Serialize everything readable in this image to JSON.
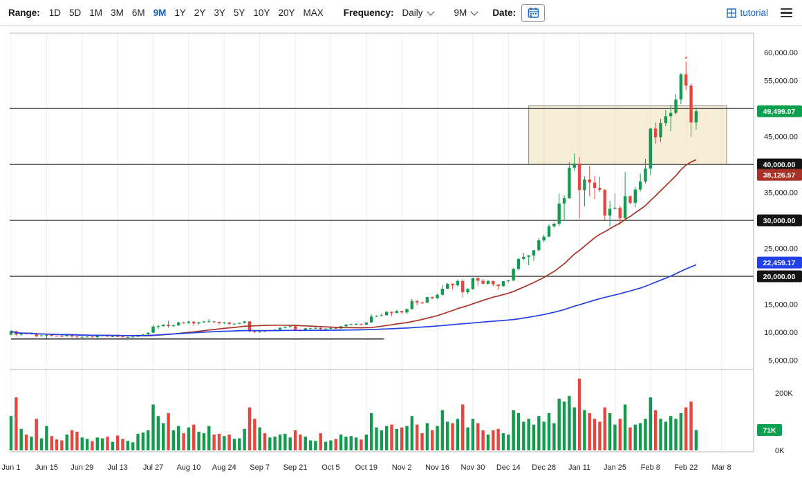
{
  "toolbar": {
    "range_label": "Range:",
    "ranges": [
      "1D",
      "5D",
      "1M",
      "3M",
      "6M",
      "9M",
      "1Y",
      "2Y",
      "3Y",
      "5Y",
      "10Y",
      "20Y",
      "MAX"
    ],
    "active_range": "9M",
    "frequency_label": "Frequency:",
    "frequency_value": "Daily",
    "period_value": "9M",
    "date_label": "Date:",
    "tutorial_label": "tutorial",
    "accent_color": "#1565c0"
  },
  "chart_data": {
    "type": "candlestick",
    "frequency": "Daily",
    "range": "9M",
    "day_step": 2,
    "x_ticks": [
      "Jun 1",
      "Jun 15",
      "Jun 29",
      "Jul 13",
      "Jul 27",
      "Aug 10",
      "Aug 24",
      "Sep 7",
      "Sep 21",
      "Oct 5",
      "Oct 19",
      "Nov 2",
      "Nov 16",
      "Nov 30",
      "Dec 14",
      "Dec 28",
      "Jan 11",
      "Jan 25",
      "Feb 8",
      "Feb 22",
      "Mar 8"
    ],
    "tick_interval_days": 14,
    "price_axis": {
      "min": 5000,
      "max": 60000,
      "step": 5000,
      "plain_labels": [
        {
          "label": "60,000.00",
          "value": 60000
        },
        {
          "label": "55,000.00",
          "value": 55000
        },
        {
          "label": "45,000.00",
          "value": 45000
        },
        {
          "label": "35,000.00",
          "value": 35000
        },
        {
          "label": "25,000.00",
          "value": 25000
        },
        {
          "label": "15,000.00",
          "value": 15000
        },
        {
          "label": "10,000.00",
          "value": 10000
        },
        {
          "label": "5,000.00",
          "value": 5000
        }
      ]
    },
    "volume_axis": {
      "max_k": 200,
      "labels": [
        {
          "label": "200K",
          "value": 200
        },
        {
          "label": "0K",
          "value": 0
        }
      ]
    },
    "badges": [
      {
        "label": "49,499.07",
        "price": 49499.07,
        "bg": "#0aa04e",
        "meaning": "last-price"
      },
      {
        "label": "40,000.00",
        "price": 40000,
        "bg": "#141414",
        "meaning": "level-line"
      },
      {
        "label": "38,126.57",
        "price": 38126.57,
        "bg": "#a93226",
        "meaning": "red-ma-value"
      },
      {
        "label": "30,000.00",
        "price": 30000,
        "bg": "#141414",
        "meaning": "level-line"
      },
      {
        "label": "22,459.17",
        "price": 22459.17,
        "bg": "#2240e8",
        "meaning": "blue-ma-value"
      },
      {
        "label": "20,000.00",
        "price": 20000,
        "bg": "#141414",
        "meaning": "level-line"
      }
    ],
    "volume_badge": {
      "label": "71K",
      "value": 71,
      "bg": "#0aa04e"
    },
    "h_lines": [
      {
        "price": 50000
      },
      {
        "price": 40000
      },
      {
        "price": 30000
      },
      {
        "price": 20000
      }
    ],
    "segment": {
      "price": 8800,
      "day_start": 0,
      "day_end": 147
    },
    "rect": {
      "day_start": 204,
      "day_end": 282,
      "price_top": 50500,
      "price_bottom": 40000
    },
    "marker": {
      "day": 266,
      "price": 58900,
      "color": "#e53935"
    },
    "overlays": [
      {
        "name": "ma-red-line",
        "color": "#a93226",
        "window": 25
      },
      {
        "name": "ma-blue-line",
        "color": "#2240e8",
        "window": 100
      }
    ],
    "colors": {
      "up": "#149a4e",
      "down": "#e5463d",
      "rect_fill": "#efd9a7"
    },
    "candles": [
      [
        9550,
        10400,
        9450,
        10200,
        120
      ],
      [
        10200,
        10290,
        9300,
        9570,
        185
      ],
      [
        9570,
        9900,
        9400,
        9800,
        75
      ],
      [
        9800,
        9880,
        9650,
        9750,
        55
      ],
      [
        9750,
        9870,
        9600,
        9770,
        48
      ],
      [
        9770,
        9950,
        9100,
        9300,
        110
      ],
      [
        9300,
        9480,
        9250,
        9430,
        42
      ],
      [
        9430,
        9590,
        8900,
        9520,
        85
      ],
      [
        9520,
        9560,
        9230,
        9380,
        50
      ],
      [
        9380,
        9440,
        9280,
        9310,
        38
      ],
      [
        9310,
        9410,
        9200,
        9280,
        35
      ],
      [
        9280,
        9700,
        9240,
        9620,
        55
      ],
      [
        9620,
        9650,
        9010,
        9240,
        70
      ],
      [
        9240,
        9300,
        8830,
        9110,
        65
      ],
      [
        9110,
        9230,
        9000,
        9190,
        45
      ],
      [
        9190,
        9300,
        9080,
        9230,
        40
      ],
      [
        9230,
        9280,
        9060,
        9120,
        32
      ],
      [
        9120,
        9370,
        8940,
        9340,
        45
      ],
      [
        9340,
        9470,
        9230,
        9440,
        42
      ],
      [
        9440,
        9570,
        9160,
        9240,
        48
      ],
      [
        9240,
        9310,
        9130,
        9290,
        30
      ],
      [
        9290,
        9640,
        9220,
        9250,
        52
      ],
      [
        9250,
        9280,
        9040,
        9130,
        40
      ],
      [
        9130,
        9220,
        9010,
        9160,
        33
      ],
      [
        9160,
        9220,
        9080,
        9210,
        28
      ],
      [
        9210,
        9540,
        9150,
        9520,
        58
      ],
      [
        9520,
        9670,
        9270,
        9600,
        62
      ],
      [
        9600,
        9960,
        9530,
        9920,
        70
      ],
      [
        9920,
        11420,
        9820,
        11020,
        160
      ],
      [
        11020,
        11340,
        10560,
        11100,
        120
      ],
      [
        11100,
        11450,
        10940,
        11350,
        95
      ],
      [
        11350,
        12080,
        10800,
        11090,
        130
      ],
      [
        11090,
        11400,
        10920,
        11230,
        70
      ],
      [
        11230,
        11900,
        11150,
        11760,
        85
      ],
      [
        11760,
        11870,
        11520,
        11680,
        60
      ],
      [
        11680,
        12060,
        11480,
        11890,
        80
      ],
      [
        11890,
        11950,
        11130,
        11570,
        90
      ],
      [
        11570,
        11850,
        11310,
        11780,
        65
      ],
      [
        11780,
        12090,
        11680,
        11900,
        60
      ],
      [
        11900,
        12380,
        11810,
        11940,
        85
      ],
      [
        11940,
        12020,
        11600,
        11860,
        55
      ],
      [
        11860,
        11880,
        11370,
        11650,
        58
      ],
      [
        11650,
        11820,
        11440,
        11770,
        50
      ],
      [
        11770,
        11790,
        11260,
        11470,
        55
      ],
      [
        11470,
        11560,
        11290,
        11530,
        40
      ],
      [
        11530,
        11720,
        11430,
        11690,
        42
      ],
      [
        11690,
        12060,
        11540,
        11930,
        75
      ],
      [
        11930,
        11960,
        10000,
        10170,
        150
      ],
      [
        10170,
        10290,
        9840,
        10050,
        110
      ],
      [
        10050,
        10390,
        9920,
        10250,
        80
      ],
      [
        10250,
        10340,
        9990,
        10230,
        60
      ],
      [
        10230,
        10420,
        10130,
        10390,
        45
      ],
      [
        10390,
        10580,
        10220,
        10440,
        48
      ],
      [
        10440,
        10930,
        10340,
        10790,
        55
      ],
      [
        10790,
        11090,
        10670,
        10940,
        58
      ],
      [
        10940,
        11170,
        10850,
        11080,
        45
      ],
      [
        11080,
        11090,
        10340,
        10440,
        70
      ],
      [
        10440,
        10540,
        10140,
        10230,
        55
      ],
      [
        10230,
        10750,
        10190,
        10690,
        48
      ],
      [
        10690,
        10810,
        10570,
        10720,
        35
      ],
      [
        10720,
        10860,
        10620,
        10780,
        33
      ],
      [
        10780,
        10920,
        10390,
        10570,
        60
      ],
      [
        10570,
        10690,
        10510,
        10660,
        30
      ],
      [
        10660,
        10800,
        10550,
        10770,
        35
      ],
      [
        10770,
        10950,
        10560,
        10670,
        40
      ],
      [
        10670,
        11110,
        10630,
        11060,
        55
      ],
      [
        11060,
        11440,
        11010,
        11370,
        48
      ],
      [
        11370,
        11560,
        11280,
        11420,
        50
      ],
      [
        11420,
        11620,
        11220,
        11500,
        45
      ],
      [
        11500,
        11560,
        11260,
        11360,
        38
      ],
      [
        11360,
        11830,
        11330,
        11750,
        55
      ],
      [
        11750,
        13250,
        11700,
        12800,
        130
      ],
      [
        12800,
        13030,
        12720,
        12930,
        80
      ],
      [
        12930,
        13360,
        12880,
        13030,
        70
      ],
      [
        13030,
        13790,
        13010,
        13650,
        85
      ],
      [
        13650,
        13680,
        12920,
        13440,
        90
      ],
      [
        13440,
        14060,
        13410,
        13800,
        75
      ],
      [
        13800,
        13830,
        13230,
        13550,
        80
      ],
      [
        13550,
        14250,
        13290,
        14140,
        85
      ],
      [
        14140,
        15950,
        14080,
        15580,
        120
      ],
      [
        15580,
        15750,
        14800,
        15330,
        90
      ],
      [
        15330,
        15460,
        15070,
        15300,
        60
      ],
      [
        15300,
        16320,
        15200,
        16280,
        95
      ],
      [
        16280,
        16450,
        15860,
        16070,
        70
      ],
      [
        16070,
        16870,
        15960,
        16710,
        85
      ],
      [
        16710,
        18480,
        16550,
        17780,
        140
      ],
      [
        17780,
        18810,
        17720,
        18650,
        100
      ],
      [
        18650,
        18750,
        17620,
        18410,
        95
      ],
      [
        18410,
        19420,
        18120,
        19160,
        110
      ],
      [
        19160,
        19480,
        16250,
        17150,
        160
      ],
      [
        17150,
        17880,
        16870,
        17730,
        80
      ],
      [
        17730,
        19750,
        17570,
        19700,
        110
      ],
      [
        19700,
        19890,
        18330,
        19200,
        95
      ],
      [
        19200,
        19520,
        18650,
        18650,
        70
      ],
      [
        18650,
        19390,
        18500,
        19150,
        55
      ],
      [
        19150,
        19280,
        18230,
        18550,
        70
      ],
      [
        18550,
        18560,
        17630,
        18250,
        75
      ],
      [
        18250,
        19170,
        18040,
        19130,
        60
      ],
      [
        19130,
        19350,
        18880,
        19270,
        55
      ],
      [
        19270,
        21480,
        19150,
        21310,
        140
      ],
      [
        21310,
        23270,
        21060,
        23100,
        130
      ],
      [
        23100,
        24200,
        22850,
        23480,
        100
      ],
      [
        23480,
        23800,
        21940,
        23730,
        110
      ],
      [
        23730,
        24700,
        22700,
        24660,
        90
      ],
      [
        24660,
        26870,
        24500,
        26440,
        120
      ],
      [
        26440,
        27400,
        26100,
        27080,
        100
      ],
      [
        27080,
        29300,
        27000,
        28950,
        130
      ],
      [
        28950,
        29660,
        28620,
        29400,
        95
      ],
      [
        29400,
        34800,
        28950,
        33000,
        180
      ],
      [
        33000,
        34440,
        29900,
        33950,
        170
      ],
      [
        33950,
        40400,
        33850,
        39400,
        190
      ],
      [
        39400,
        41950,
        38800,
        40150,
        150
      ],
      [
        40150,
        41350,
        30300,
        35400,
        250
      ],
      [
        35400,
        37900,
        32500,
        37300,
        140
      ],
      [
        37300,
        39750,
        34300,
        36750,
        130
      ],
      [
        36750,
        37950,
        33850,
        35800,
        110
      ],
      [
        35800,
        37850,
        35100,
        35450,
        100
      ],
      [
        35450,
        35600,
        30050,
        30850,
        150
      ],
      [
        30850,
        33450,
        28850,
        32100,
        130
      ],
      [
        32100,
        34850,
        31950,
        32250,
        90
      ],
      [
        32250,
        32550,
        29250,
        30400,
        110
      ],
      [
        30400,
        38600,
        29900,
        34300,
        160
      ],
      [
        34300,
        34450,
        32850,
        33100,
        80
      ],
      [
        33100,
        35950,
        32300,
        35500,
        90
      ],
      [
        35500,
        38350,
        35200,
        36950,
        95
      ],
      [
        36950,
        40950,
        36600,
        39250,
        110
      ],
      [
        39250,
        46550,
        38050,
        46400,
        185
      ],
      [
        46400,
        47500,
        43700,
        44850,
        140
      ],
      [
        44850,
        48150,
        44000,
        47400,
        110
      ],
      [
        47400,
        49750,
        46850,
        48600,
        100
      ],
      [
        48600,
        50600,
        45900,
        49200,
        120
      ],
      [
        49200,
        52650,
        48900,
        51600,
        110
      ],
      [
        51600,
        56350,
        50750,
        56100,
        130
      ],
      [
        56100,
        58350,
        53250,
        54100,
        150
      ],
      [
        54100,
        54500,
        44900,
        47500,
        170
      ],
      [
        47500,
        50200,
        46200,
        49499.07,
        71
      ]
    ]
  }
}
